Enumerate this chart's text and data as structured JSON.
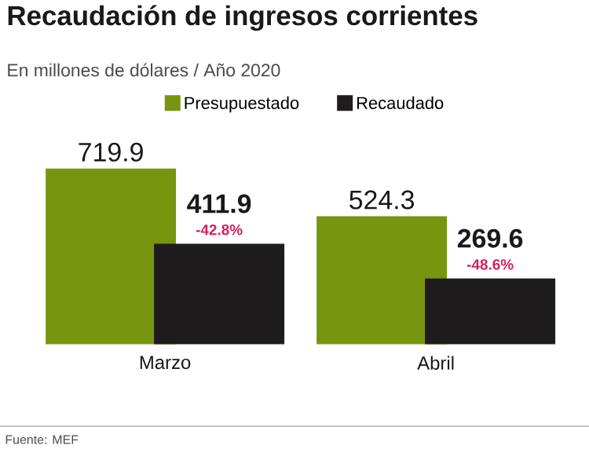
{
  "chart_data": {
    "type": "bar",
    "title": "Recaudación de ingresos corrientes",
    "subtitle": "En millones de dólares / Año 2020",
    "categories": [
      "Marzo",
      "Abril"
    ],
    "series": [
      {
        "name": "Presupuestado",
        "color": "#77950f",
        "values": [
          719.9,
          524.3
        ]
      },
      {
        "name": "Recaudado",
        "color": "#1e1c1d",
        "values": [
          411.9,
          269.6
        ]
      }
    ],
    "data_labels": true,
    "legend": "top",
    "annotations": [
      "-42.8%",
      "-48.6%",
      "Fuente: MEF"
    ]
  }
}
